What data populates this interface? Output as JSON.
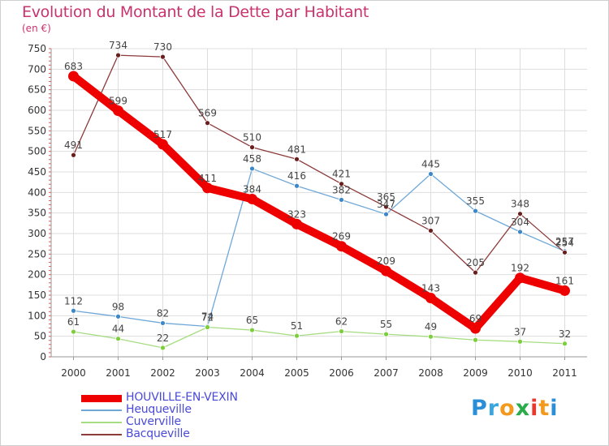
{
  "title": "Evolution du Montant de la Dette par Habitant",
  "subtitle": "(en €)",
  "brand": {
    "logo_text": "Proxiti",
    "letter_colors": [
      "#2a8fd6",
      "#3aa5de",
      "#f39a1e",
      "#2cab4a",
      "#e8392e",
      "#f39a1e",
      "#2a8fd6"
    ]
  },
  "chart_data": {
    "type": "line",
    "x": [
      "2000",
      "2001",
      "2002",
      "2003",
      "2004",
      "2005",
      "2006",
      "2007",
      "2008",
      "2009",
      "2010",
      "2011"
    ],
    "ylim": [
      0,
      750
    ],
    "yticks": [
      0,
      50,
      100,
      150,
      200,
      250,
      300,
      350,
      400,
      450,
      500,
      550,
      600,
      650,
      700,
      750
    ],
    "grid": true,
    "legend_position": "bottom-left",
    "series": [
      {
        "name": "HOUVILLE-EN-VEXIN",
        "color": "#ee0000",
        "marker": "#ee0000",
        "emphasis": true,
        "values": [
          683,
          599,
          517,
          411,
          384,
          323,
          269,
          209,
          143,
          69,
          192,
          161
        ]
      },
      {
        "name": "Heuqueville",
        "color": "#6fa8d8",
        "marker": "#3c88c8",
        "emphasis": false,
        "values": [
          112,
          98,
          82,
          74,
          458,
          416,
          382,
          347,
          445,
          355,
          304,
          257
        ]
      },
      {
        "name": "Cuverville",
        "color": "#a6dd82",
        "marker": "#7ccf3a",
        "emphasis": false,
        "values": [
          61,
          44,
          22,
          72,
          65,
          51,
          62,
          55,
          49,
          41,
          37,
          32
        ]
      },
      {
        "name": "Bacqueville",
        "color": "#8c3a3a",
        "marker": "#6a1f1f",
        "emphasis": false,
        "values": [
          491,
          734,
          730,
          569,
          510,
          481,
          421,
          365,
          307,
          205,
          348,
          254
        ]
      }
    ],
    "data_labels": [
      [
        683,
        599,
        517,
        411,
        384,
        323,
        269,
        209,
        143,
        69,
        192,
        161
      ],
      [
        112,
        98,
        82,
        74,
        458,
        416,
        382,
        347,
        445,
        355,
        304,
        257
      ],
      [
        61,
        44,
        22,
        72,
        65,
        51,
        62,
        55,
        49,
        null,
        37,
        32
      ],
      [
        491,
        734,
        730,
        569,
        510,
        481,
        421,
        365,
        307,
        205,
        348,
        254
      ]
    ]
  }
}
